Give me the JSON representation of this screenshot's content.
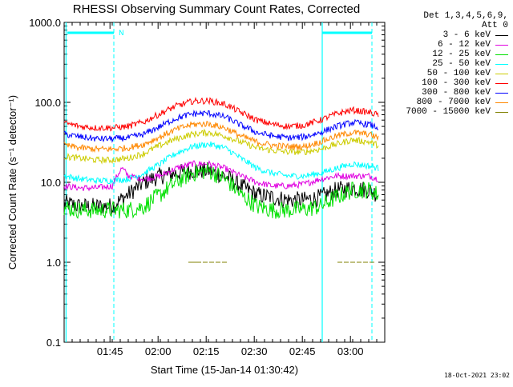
{
  "chart_data": {
    "type": "line",
    "title": "RHESSI Observing Summary Count Rates, Corrected",
    "xlabel": "Start Time (15-Jan-14 01:30:42)",
    "ylabel": "Corrected Count Rate (s⁻¹ detector⁻¹)",
    "yscale": "log",
    "ylim": [
      0.1,
      1000.0
    ],
    "yticks": [
      "1000.0",
      "100.0",
      "10.0",
      "1.0",
      "0.1"
    ],
    "xlim_minutes": [
      0,
      100
    ],
    "xticks": [
      {
        "label": "01:45",
        "minutes": 14.3
      },
      {
        "label": "02:00",
        "minutes": 29.3
      },
      {
        "label": "02:15",
        "minutes": 44.3
      },
      {
        "label": "02:30",
        "minutes": 59.3
      },
      {
        "label": "02:45",
        "minutes": 74.3
      },
      {
        "label": "03:00",
        "minutes": 89.3
      }
    ],
    "legend_title_lines": [
      "Det 1,3,4,5,6,9,",
      "Att 0"
    ],
    "series": [
      {
        "name": "3 - 6 keV",
        "color": "#000000",
        "x": [
          0,
          5,
          10,
          15,
          20,
          25,
          30,
          35,
          40,
          45,
          50,
          55,
          60,
          65,
          70,
          75,
          80,
          85,
          90,
          95,
          98
        ],
        "y": [
          5.5,
          5.0,
          5.0,
          5.0,
          7,
          10,
          12,
          13,
          14,
          14,
          12,
          9,
          7,
          6.5,
          6,
          6,
          6.5,
          8,
          8.5,
          8,
          7
        ]
      },
      {
        "name": "6 - 12 keV",
        "color": "#e000e0",
        "x": [
          0,
          5,
          10,
          15,
          18,
          20,
          25,
          30,
          35,
          40,
          45,
          50,
          55,
          60,
          65,
          70,
          75,
          80,
          85,
          90,
          95,
          98
        ],
        "y": [
          9,
          8.5,
          8.5,
          9,
          15,
          12,
          11,
          12,
          15,
          17,
          17,
          15,
          12,
          10,
          9,
          9,
          9.5,
          11,
          12,
          12,
          12,
          11
        ]
      },
      {
        "name": "12 - 25 keV",
        "color": "#00e000",
        "x": [
          0,
          5,
          10,
          15,
          20,
          25,
          30,
          35,
          40,
          45,
          50,
          55,
          60,
          65,
          70,
          75,
          80,
          85,
          90,
          95,
          98
        ],
        "y": [
          4.8,
          4.5,
          4.5,
          4.5,
          4.5,
          5,
          7,
          10,
          13,
          14,
          11,
          7,
          5,
          4.5,
          4.5,
          4.6,
          5,
          6.5,
          8,
          8,
          7
        ]
      },
      {
        "name": "25 - 50 keV",
        "color": "#00ffff",
        "x": [
          0,
          5,
          10,
          15,
          20,
          25,
          30,
          35,
          40,
          45,
          50,
          55,
          60,
          65,
          70,
          75,
          80,
          85,
          90,
          95,
          98
        ],
        "y": [
          12,
          11,
          10.5,
          10.5,
          11,
          13,
          17,
          23,
          28,
          30,
          27,
          20,
          15,
          13,
          12,
          12,
          13,
          15,
          17,
          16,
          15
        ]
      },
      {
        "name": "50 - 100 keV",
        "color": "#cccc00",
        "x": [
          0,
          5,
          10,
          15,
          20,
          25,
          30,
          35,
          40,
          45,
          50,
          55,
          60,
          65,
          70,
          75,
          80,
          85,
          90,
          95,
          98
        ],
        "y": [
          21,
          20,
          19,
          19,
          20,
          23,
          29,
          35,
          40,
          42,
          38,
          32,
          27,
          25,
          24,
          24,
          26,
          30,
          34,
          32,
          29
        ]
      },
      {
        "name": "100 - 300 keV",
        "color": "#ff0000",
        "x": [
          0,
          5,
          10,
          15,
          20,
          25,
          30,
          35,
          40,
          45,
          50,
          55,
          60,
          65,
          70,
          75,
          80,
          85,
          90,
          95,
          98
        ],
        "y": [
          55,
          50,
          48,
          48,
          50,
          57,
          72,
          90,
          103,
          105,
          95,
          75,
          60,
          53,
          50,
          52,
          60,
          72,
          80,
          75,
          70
        ]
      },
      {
        "name": "300 - 800 keV",
        "color": "#0000ff",
        "x": [
          0,
          5,
          10,
          15,
          20,
          25,
          30,
          35,
          40,
          45,
          50,
          55,
          60,
          65,
          70,
          75,
          80,
          85,
          90,
          95,
          98
        ],
        "y": [
          40,
          37,
          35,
          35,
          36,
          40,
          50,
          63,
          72,
          73,
          66,
          52,
          42,
          38,
          36,
          37,
          42,
          50,
          56,
          53,
          48
        ]
      },
      {
        "name": "800 - 7000 keV",
        "color": "#ff8800",
        "x": [
          0,
          5,
          10,
          15,
          20,
          25,
          30,
          35,
          40,
          45,
          50,
          55,
          60,
          65,
          70,
          75,
          80,
          85,
          90,
          95,
          98
        ],
        "y": [
          29,
          27,
          26,
          26,
          27,
          30,
          37,
          46,
          53,
          54,
          48,
          38,
          32,
          29,
          28,
          28,
          32,
          38,
          42,
          40,
          36
        ]
      },
      {
        "name": "7000 - 15000 keV",
        "color": "#808000",
        "points": [
          [
            39.5,
            1.0
          ],
          [
            40.5,
            1.0
          ],
          [
            42,
            1.0
          ],
          [
            44,
            1.0
          ],
          [
            46,
            1.0
          ],
          [
            48,
            1.0
          ],
          [
            50,
            1.0
          ],
          [
            86,
            1.0
          ],
          [
            88,
            1.0
          ],
          [
            90,
            1.0
          ],
          [
            92,
            1.0
          ],
          [
            94,
            1.0
          ],
          [
            96,
            1.0
          ]
        ]
      }
    ],
    "vertical_lines": {
      "solid_minutes": [
        0.6,
        80.5
      ],
      "dashed_minutes": [
        15.5,
        80.5,
        96.0
      ],
      "color": "#00ffff"
    },
    "bars": {
      "color": "#00ffff",
      "segments_minutes": [
        [
          1,
          15.5
        ],
        [
          80.5,
          96.0
        ]
      ],
      "annotation": "N"
    }
  },
  "timestamp": "18-Oct-2021 23:02"
}
